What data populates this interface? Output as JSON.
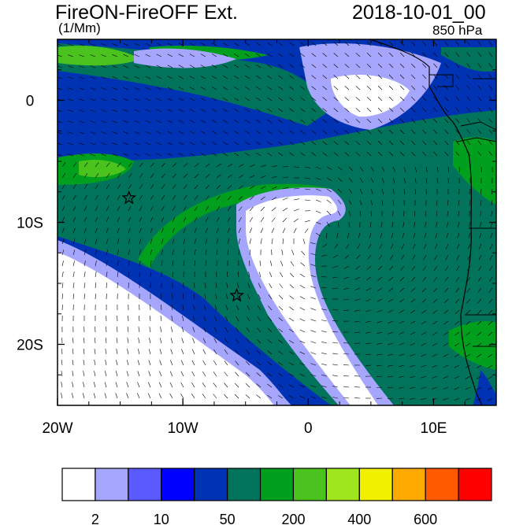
{
  "header": {
    "title": "FireON-FireOFF Ext.",
    "units": "(1/Mm)",
    "datetime": "2018-10-01_00",
    "level": "850 hPa"
  },
  "map": {
    "lon_range": [
      -20,
      15
    ],
    "lat_range": [
      -25,
      5
    ],
    "x_ticks": [
      {
        "value": -20,
        "label": "20W"
      },
      {
        "value": -10,
        "label": "10W"
      },
      {
        "value": 0,
        "label": "0"
      },
      {
        "value": 10,
        "label": "10E"
      }
    ],
    "y_ticks": [
      {
        "value": 0,
        "label": "0"
      },
      {
        "value": -10,
        "label": "10S"
      },
      {
        "value": -20,
        "label": "20S"
      }
    ],
    "stars": [
      {
        "lon": -14.3,
        "lat": -8.0
      },
      {
        "lon": -5.7,
        "lat": -16.0
      }
    ]
  },
  "colorbar": {
    "colors": [
      "#ffffff",
      "#a6a6ff",
      "#5a5aff",
      "#0000ff",
      "#0033b3",
      "#00735a",
      "#00a01e",
      "#4bc31e",
      "#a0e61e",
      "#f0f000",
      "#ffaa00",
      "#ff5a00",
      "#ff0000"
    ],
    "labels": [
      {
        "after_box": 1,
        "text": "2"
      },
      {
        "after_box": 3,
        "text": "10"
      },
      {
        "after_box": 5,
        "text": "50"
      },
      {
        "after_box": 7,
        "text": "200"
      },
      {
        "after_box": 9,
        "text": "400"
      },
      {
        "after_box": 11,
        "text": "600"
      }
    ]
  }
}
